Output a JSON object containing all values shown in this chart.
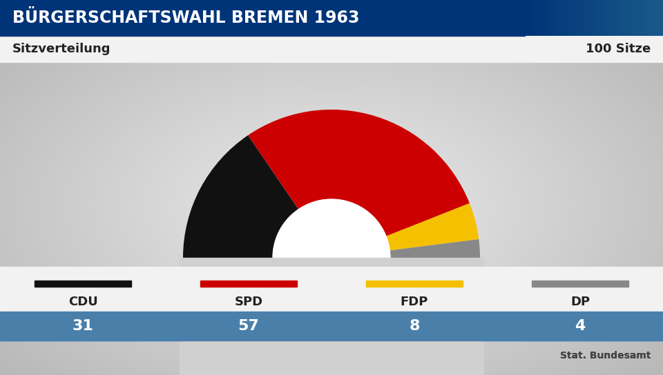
{
  "title": "BÜRGERSCHAFTSWAHL BREMEN 1963",
  "subtitle_left": "Sitzverteilung",
  "subtitle_right": "100 Sitze",
  "source": "Stat. Bundesamt",
  "parties": [
    "CDU",
    "SPD",
    "FDP",
    "DP"
  ],
  "seats": [
    31,
    57,
    8,
    4
  ],
  "colors": [
    "#111111",
    "#cc0000",
    "#f5c000",
    "#888888"
  ],
  "total": 100,
  "title_bg": "#003478",
  "title_bg_right": "#1a5a8a",
  "subtitle_bg": "#f8f8f8",
  "bar_bg": "#4a7faa",
  "background_left": "#c0c0c0",
  "background_center": "#e8e8e8",
  "fig_width": 9.6,
  "fig_height": 5.44,
  "dpi": 100
}
